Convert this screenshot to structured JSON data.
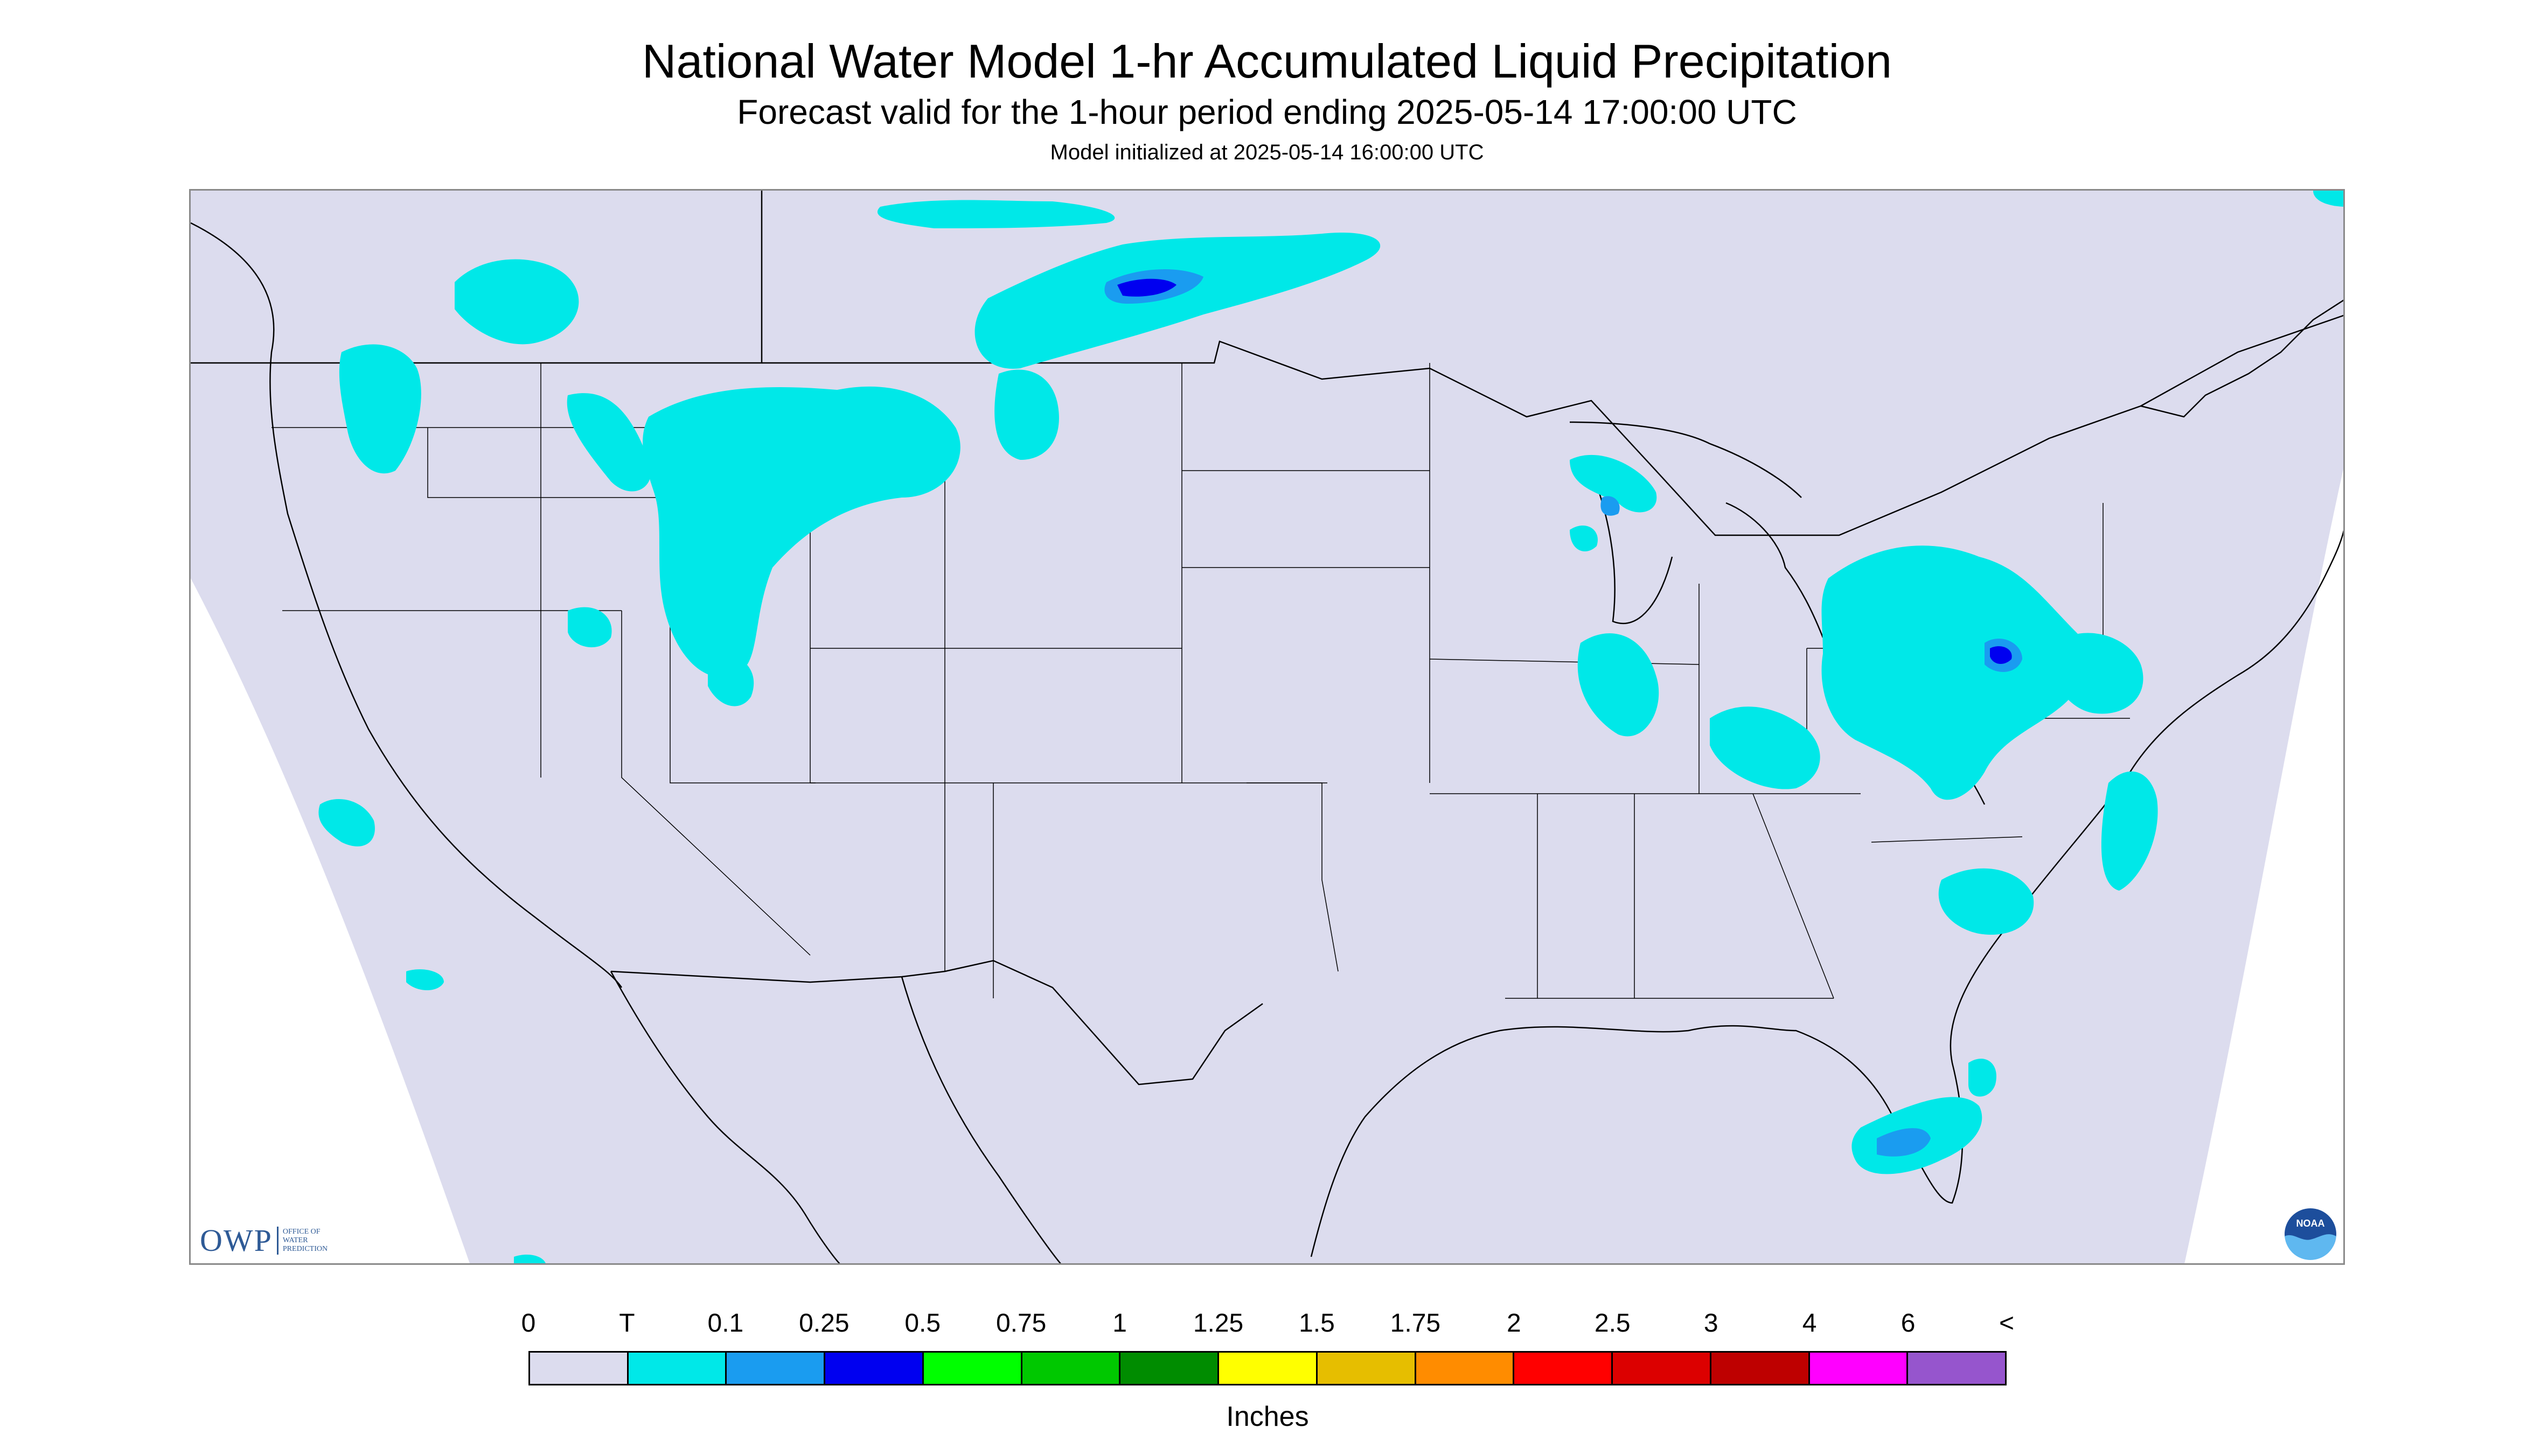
{
  "title": "National Water Model 1-hr Accumulated Liquid Precipitation",
  "subtitle": "Forecast valid for the 1-hour period ending 2025-05-14 17:00:00 UTC",
  "init_text": "Model initialized at 2025-05-14 16:00:00 UTC",
  "logos": {
    "owp": {
      "abbr": "OWP",
      "line1": "OFFICE OF",
      "line2": "WATER",
      "line3": "PREDICTION"
    },
    "noaa": "NOAA"
  },
  "colors": {
    "domain_fill": "#dcdcee",
    "trace": "#00e8e8",
    "heavier": "#1a9cf0",
    "heavy": "#0000f0"
  },
  "legend": {
    "labels": [
      "0",
      "T",
      "0.1",
      "0.25",
      "0.5",
      "0.75",
      "1",
      "1.25",
      "1.5",
      "1.75",
      "2",
      "2.5",
      "3",
      "4",
      "6",
      "<"
    ],
    "colors": [
      "#dcdcee",
      "#00e8e8",
      "#1a9cf0",
      "#0000f0",
      "#00ff00",
      "#00c800",
      "#008c00",
      "#ffff00",
      "#e6be00",
      "#ff8c00",
      "#ff0000",
      "#dc0000",
      "#be0000",
      "#ff00ff",
      "#9655cd"
    ],
    "units": "Inches"
  }
}
